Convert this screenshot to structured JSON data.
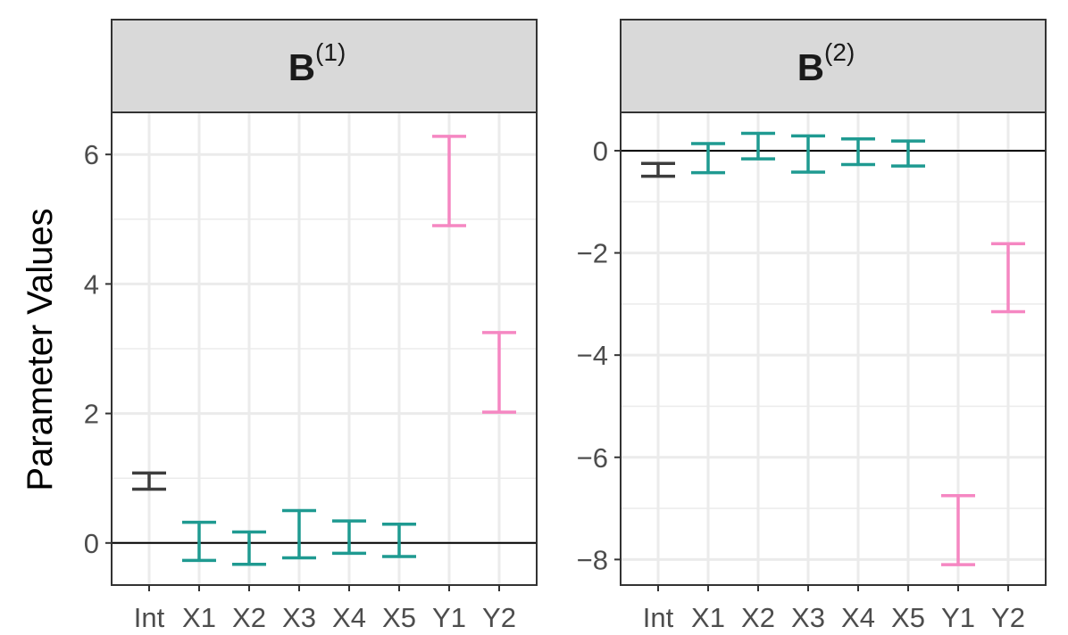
{
  "chart_data": [
    {
      "type": "errorbar",
      "panel_label": {
        "base": "B",
        "superscript": "(1)"
      },
      "categories": [
        "Int",
        "X1",
        "X2",
        "X3",
        "X4",
        "X5",
        "Y1",
        "Y2"
      ],
      "groups": [
        "intercept",
        "x",
        "x",
        "x",
        "x",
        "x",
        "y",
        "y"
      ],
      "lower": [
        0.83,
        -0.27,
        -0.33,
        -0.23,
        -0.16,
        -0.21,
        4.9,
        2.02
      ],
      "upper": [
        1.08,
        0.32,
        0.17,
        0.5,
        0.34,
        0.29,
        6.28,
        3.25
      ],
      "yticks": [
        0,
        2,
        4,
        6
      ],
      "ylim": [
        -0.65,
        6.65
      ],
      "hline": 0,
      "grid": true
    },
    {
      "type": "errorbar",
      "panel_label": {
        "base": "B",
        "superscript": "(2)"
      },
      "categories": [
        "Int",
        "X1",
        "X2",
        "X3",
        "X4",
        "X5",
        "Y1",
        "Y2"
      ],
      "groups": [
        "intercept",
        "x",
        "x",
        "x",
        "x",
        "x",
        "y",
        "y"
      ],
      "lower": [
        -0.5,
        -0.43,
        -0.16,
        -0.42,
        -0.27,
        -0.3,
        -8.1,
        -3.15
      ],
      "upper": [
        -0.25,
        0.14,
        0.34,
        0.29,
        0.23,
        0.19,
        -6.75,
        -1.82
      ],
      "yticks": [
        0,
        -2,
        -4,
        -6,
        -8
      ],
      "ylim": [
        -8.5,
        0.75
      ],
      "hline": 0,
      "grid": true
    }
  ],
  "ylabel": "Parameter Values",
  "colors": {
    "intercept": "#3d3d3d",
    "x": "#1f9a91",
    "y": "#f587c2",
    "grid": "#ebebeb",
    "strip": "#d9d9d9",
    "border": "#333333"
  }
}
